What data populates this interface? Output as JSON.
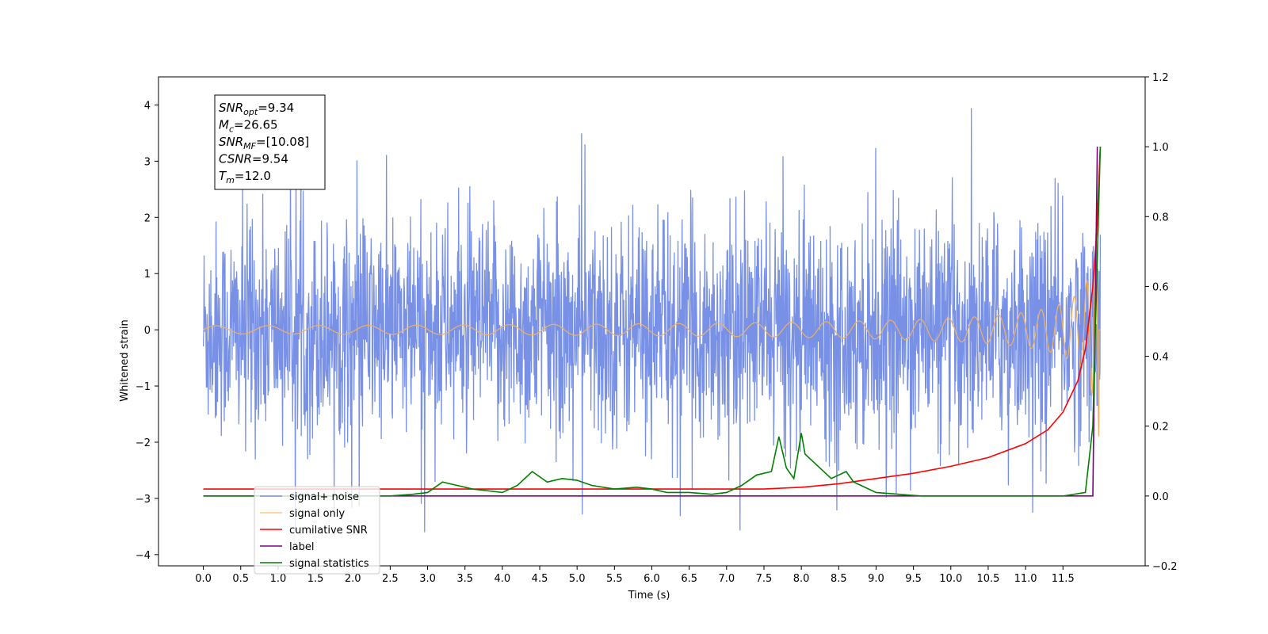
{
  "chart_data": {
    "type": "line",
    "xlabel": "Time (s)",
    "ylabel": "Whitened strain",
    "xlim": [
      -0.6,
      12.6
    ],
    "ylim": [
      -4.2,
      4.5
    ],
    "ylim_right": [
      -0.2,
      1.2
    ],
    "x_ticks": [
      "0.0",
      "0.5",
      "1.0",
      "1.5",
      "2.0",
      "2.5",
      "3.0",
      "3.5",
      "4.0",
      "4.5",
      "5.0",
      "5.5",
      "6.0",
      "6.5",
      "7.0",
      "7.5",
      "8.0",
      "8.5",
      "9.0",
      "9.5",
      "10.0",
      "10.5",
      "11.0",
      "11.5"
    ],
    "y_ticks": [
      "4",
      "3",
      "2",
      "1",
      "0",
      "−1",
      "−2",
      "−3",
      "−4"
    ],
    "y_right_ticks": [
      "1.2",
      "1.0",
      "0.8",
      "0.6",
      "0.4",
      "0.2",
      "0.0",
      "−0.2"
    ],
    "annotation": {
      "lines": [
        {
          "sym": "SNR",
          "sub": "opt",
          "value": "=9.34"
        },
        {
          "sym": "M",
          "sub": "c",
          "value": "=26.65"
        },
        {
          "sym": "SNR",
          "sub": "MF",
          "value": "=[10.08]"
        },
        {
          "sym": "CSNR",
          "sub": "",
          "value": "=9.54"
        },
        {
          "sym": "T",
          "sub": "m",
          "value": "=12.0"
        }
      ]
    },
    "legend": {
      "position": "lower-left",
      "entries": [
        {
          "label": "signal+ noise",
          "color": "#7891e6"
        },
        {
          "label": "signal only",
          "color": "#ffcc80"
        },
        {
          "label": "cumilative SNR",
          "color": "#ff0000"
        },
        {
          "label": "label",
          "color": "#800080"
        },
        {
          "label": "signal statistics",
          "color": "#008000"
        }
      ]
    },
    "series": [
      {
        "name": "signal+ noise",
        "axis": "left",
        "color": "#7891e6",
        "description_stats": {
          "x_start": 0.0,
          "x_end": 12.0,
          "typical_range": [
            -2.0,
            2.2
          ],
          "max": 4.1,
          "min": -3.6
        }
      },
      {
        "name": "signal only",
        "axis": "left",
        "color": "#f0b060",
        "chirp": {
          "x_start": 0.0,
          "x_end": 12.0,
          "peak_amplitude": 1.9
        }
      },
      {
        "name": "cumilative SNR",
        "axis": "right",
        "color": "#ff0000",
        "x": [
          0.0,
          7.5,
          8.0,
          8.5,
          9.0,
          9.5,
          10.0,
          10.5,
          11.0,
          11.3,
          11.5,
          11.7,
          11.8,
          11.9,
          11.95,
          12.0
        ],
        "values": [
          0.02,
          0.02,
          0.025,
          0.035,
          0.05,
          0.065,
          0.085,
          0.11,
          0.15,
          0.19,
          0.24,
          0.33,
          0.42,
          0.6,
          0.75,
          1.0
        ]
      },
      {
        "name": "label",
        "axis": "right",
        "color": "#800080",
        "x": [
          0.0,
          11.9,
          11.96,
          11.96
        ],
        "values": [
          0.0,
          0.0,
          1.0,
          1.0
        ]
      },
      {
        "name": "signal statistics",
        "axis": "right",
        "color": "#008000",
        "x": [
          0.0,
          2.5,
          2.8,
          3.0,
          3.2,
          3.4,
          3.6,
          3.8,
          4.0,
          4.2,
          4.4,
          4.6,
          4.8,
          5.0,
          5.2,
          5.5,
          5.8,
          6.0,
          6.2,
          6.5,
          6.8,
          7.0,
          7.2,
          7.4,
          7.6,
          7.7,
          7.8,
          7.9,
          8.0,
          8.05,
          8.2,
          8.4,
          8.6,
          8.7,
          8.8,
          9.0,
          9.3,
          9.6,
          10.0,
          10.5,
          11.0,
          11.5,
          11.8,
          11.9,
          12.0
        ],
        "values": [
          0.0,
          0.0,
          0.005,
          0.01,
          0.04,
          0.03,
          0.02,
          0.015,
          0.01,
          0.03,
          0.07,
          0.04,
          0.05,
          0.045,
          0.03,
          0.02,
          0.025,
          0.02,
          0.01,
          0.01,
          0.005,
          0.01,
          0.03,
          0.06,
          0.07,
          0.17,
          0.08,
          0.05,
          0.18,
          0.12,
          0.09,
          0.05,
          0.07,
          0.04,
          0.03,
          0.01,
          0.005,
          0.0,
          0.0,
          0.0,
          0.0,
          0.0,
          0.01,
          0.2,
          1.0
        ]
      }
    ]
  }
}
